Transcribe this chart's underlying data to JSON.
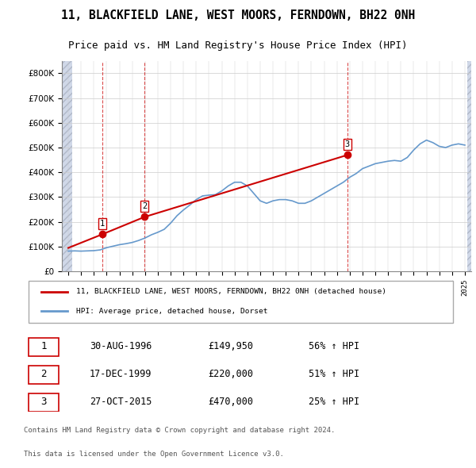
{
  "title": "11, BLACKFIELD LANE, WEST MOORS, FERNDOWN, BH22 0NH",
  "subtitle": "Price paid vs. HM Land Registry's House Price Index (HPI)",
  "legend_line1": "11, BLACKFIELD LANE, WEST MOORS, FERNDOWN, BH22 0NH (detached house)",
  "legend_line2": "HPI: Average price, detached house, Dorset",
  "footer1": "Contains HM Land Registry data © Crown copyright and database right 2024.",
  "footer2": "This data is licensed under the Open Government Licence v3.0.",
  "transactions": [
    {
      "num": 1,
      "date": "30-AUG-1996",
      "price": 149950,
      "pct": "56%",
      "dir": "↑",
      "x_year": 1996.66
    },
    {
      "num": 2,
      "date": "17-DEC-1999",
      "price": 220000,
      "pct": "51%",
      "dir": "↑",
      "x_year": 1999.96
    },
    {
      "num": 3,
      "date": "27-OCT-2015",
      "price": 470000,
      "pct": "25%",
      "dir": "↑",
      "x_year": 2015.82
    }
  ],
  "hpi_color": "#6699cc",
  "price_color": "#cc0000",
  "vline_color": "#cc0000",
  "background_hatch_color": "#d0d8e8",
  "ylim": [
    0,
    850000
  ],
  "yticks": [
    0,
    100000,
    200000,
    300000,
    400000,
    500000,
    600000,
    700000,
    800000
  ],
  "xlim": [
    1993.5,
    2025.5
  ],
  "hpi_data": {
    "years": [
      1994.0,
      1994.5,
      1995.0,
      1995.5,
      1996.0,
      1996.5,
      1997.0,
      1997.5,
      1998.0,
      1998.5,
      1999.0,
      1999.5,
      2000.0,
      2000.5,
      2001.0,
      2001.5,
      2002.0,
      2002.5,
      2003.0,
      2003.5,
      2004.0,
      2004.5,
      2005.0,
      2005.5,
      2006.0,
      2006.5,
      2007.0,
      2007.5,
      2008.0,
      2008.5,
      2009.0,
      2009.5,
      2010.0,
      2010.5,
      2011.0,
      2011.5,
      2012.0,
      2012.5,
      2013.0,
      2013.5,
      2014.0,
      2014.5,
      2015.0,
      2015.5,
      2016.0,
      2016.5,
      2017.0,
      2017.5,
      2018.0,
      2018.5,
      2019.0,
      2019.5,
      2020.0,
      2020.5,
      2021.0,
      2021.5,
      2022.0,
      2022.5,
      2023.0,
      2023.5,
      2024.0,
      2024.5,
      2025.0
    ],
    "values": [
      82000,
      83000,
      82000,
      83000,
      84000,
      87000,
      96000,
      102000,
      108000,
      112000,
      117000,
      125000,
      135000,
      148000,
      158000,
      170000,
      195000,
      225000,
      248000,
      268000,
      290000,
      305000,
      308000,
      310000,
      325000,
      345000,
      360000,
      360000,
      345000,
      315000,
      285000,
      275000,
      285000,
      290000,
      290000,
      285000,
      275000,
      275000,
      285000,
      300000,
      315000,
      330000,
      345000,
      360000,
      380000,
      395000,
      415000,
      425000,
      435000,
      440000,
      445000,
      448000,
      445000,
      460000,
      490000,
      515000,
      530000,
      520000,
      505000,
      500000,
      510000,
      515000,
      510000
    ]
  },
  "price_data": {
    "years": [
      1994.0,
      1996.66,
      1999.96,
      2015.82
    ],
    "values": [
      95000,
      149950,
      220000,
      470000
    ]
  },
  "hpi_extended_years": [
    1996.66,
    2025.0
  ],
  "hpi_extended_values": [
    87000,
    510000
  ]
}
